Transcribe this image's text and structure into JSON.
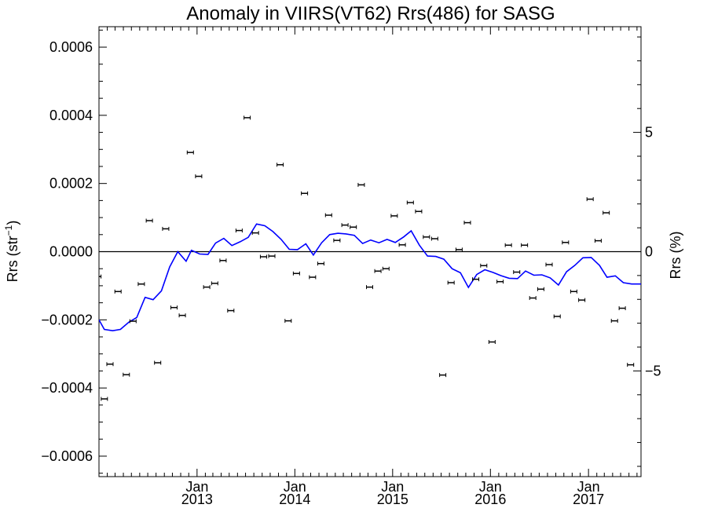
{
  "chart_data": {
    "type": "scatter",
    "title": "Anomaly in VIIRS(VT62) Rrs(486) for SASG",
    "ylabel": {
      "base": "Rrs (str",
      "sup": "−1",
      "tail": ")"
    },
    "y2label": "Rrs (%)",
    "xlabel": "",
    "x_range": [
      "2012-01-01",
      "2017-07-16"
    ],
    "ylim": [
      -0.00066,
      0.00066
    ],
    "y2lim": [
      -9.43,
      9.43
    ],
    "y_ticks": [
      -0.0006,
      -0.0004,
      -0.0002,
      0.0,
      0.0002,
      0.0004,
      0.0006
    ],
    "y_tick_labels": [
      "−0.0006",
      "−0.0004",
      "−0.0002",
      "0.0000",
      "0.0002",
      "0.0004",
      "0.0006"
    ],
    "y2_ticks": [
      -5,
      0,
      5
    ],
    "y2_tick_labels": [
      "−5",
      "0",
      "5"
    ],
    "x_ticks": [
      {
        "date": "2013-01-01",
        "month": "Jan",
        "year": "2013"
      },
      {
        "date": "2014-01-01",
        "month": "Jan",
        "year": "2014"
      },
      {
        "date": "2015-01-01",
        "month": "Jan",
        "year": "2015"
      },
      {
        "date": "2016-01-01",
        "month": "Jan",
        "year": "2016"
      },
      {
        "date": "2017-01-01",
        "month": "Jan",
        "year": "2017"
      }
    ],
    "zero_line": true,
    "series": [
      {
        "kind": "points_with_errorbars",
        "color": "#000000",
        "points": [
          {
            "x": "2011-12-28",
            "y": -7.3e-05
          },
          {
            "x": "2012-01-21",
            "y": -0.000432
          },
          {
            "x": "2012-02-11",
            "y": -0.00033
          },
          {
            "x": "2012-03-12",
            "y": -0.000117
          },
          {
            "x": "2012-04-12",
            "y": -0.000361
          },
          {
            "x": "2012-05-07",
            "y": -0.000204
          },
          {
            "x": "2012-06-07",
            "y": -9.5e-05
          },
          {
            "x": "2012-07-07",
            "y": 9.1e-05
          },
          {
            "x": "2012-08-07",
            "y": -0.000326
          },
          {
            "x": "2012-09-06",
            "y": 6.7e-05
          },
          {
            "x": "2012-10-07",
            "y": -0.000164
          },
          {
            "x": "2012-11-07",
            "y": -0.000187
          },
          {
            "x": "2012-12-07",
            "y": 0.000291
          },
          {
            "x": "2013-01-07",
            "y": 0.000221
          },
          {
            "x": "2013-02-06",
            "y": -0.000104
          },
          {
            "x": "2013-03-08",
            "y": -9.3e-05
          },
          {
            "x": "2013-04-08",
            "y": -2.6e-05
          },
          {
            "x": "2013-05-07",
            "y": -0.000173
          },
          {
            "x": "2013-06-07",
            "y": 6.2e-05
          },
          {
            "x": "2013-07-07",
            "y": 0.000393
          },
          {
            "x": "2013-08-07",
            "y": 5.5e-05
          },
          {
            "x": "2013-09-06",
            "y": -1.5e-05
          },
          {
            "x": "2013-10-07",
            "y": -1.3e-05
          },
          {
            "x": "2013-11-07",
            "y": 0.000255
          },
          {
            "x": "2013-12-07",
            "y": -0.000203
          },
          {
            "x": "2014-01-07",
            "y": -6.4e-05
          },
          {
            "x": "2014-02-06",
            "y": 0.000171
          },
          {
            "x": "2014-03-08",
            "y": -7.5e-05
          },
          {
            "x": "2014-04-08",
            "y": -3.5e-05
          },
          {
            "x": "2014-05-07",
            "y": 0.000107
          },
          {
            "x": "2014-06-07",
            "y": 3.3e-05
          },
          {
            "x": "2014-07-07",
            "y": 7.8e-05
          },
          {
            "x": "2014-08-07",
            "y": 7.2e-05
          },
          {
            "x": "2014-09-06",
            "y": 0.000196
          },
          {
            "x": "2014-10-07",
            "y": -0.000104
          },
          {
            "x": "2014-11-07",
            "y": -5.7e-05
          },
          {
            "x": "2014-12-07",
            "y": -5e-05
          },
          {
            "x": "2015-01-07",
            "y": 0.000105
          },
          {
            "x": "2015-02-06",
            "y": 2e-05
          },
          {
            "x": "2015-03-08",
            "y": 0.000144
          },
          {
            "x": "2015-04-08",
            "y": 0.000118
          },
          {
            "x": "2015-05-07",
            "y": 4.3e-05
          },
          {
            "x": "2015-06-07",
            "y": 3.8e-05
          },
          {
            "x": "2015-07-07",
            "y": -0.000362
          },
          {
            "x": "2015-08-07",
            "y": -9.1e-05
          },
          {
            "x": "2015-09-06",
            "y": 6e-06
          },
          {
            "x": "2015-10-07",
            "y": 8.5e-05
          },
          {
            "x": "2015-11-07",
            "y": -8.1e-05
          },
          {
            "x": "2015-12-07",
            "y": -4.1e-05
          },
          {
            "x": "2016-01-07",
            "y": -0.000265
          },
          {
            "x": "2016-02-06",
            "y": -8.8e-05
          },
          {
            "x": "2016-03-08",
            "y": 1.9e-05
          },
          {
            "x": "2016-04-08",
            "y": -6e-05
          },
          {
            "x": "2016-05-07",
            "y": 1.9e-05
          },
          {
            "x": "2016-06-07",
            "y": -0.000136
          },
          {
            "x": "2016-07-07",
            "y": -0.00011
          },
          {
            "x": "2016-08-07",
            "y": -3.8e-05
          },
          {
            "x": "2016-09-06",
            "y": -0.00019
          },
          {
            "x": "2016-10-07",
            "y": 2.7e-05
          },
          {
            "x": "2016-11-07",
            "y": -0.000117
          },
          {
            "x": "2016-12-07",
            "y": -0.000142
          },
          {
            "x": "2017-01-07",
            "y": 0.000154
          },
          {
            "x": "2017-02-06",
            "y": 3.2e-05
          },
          {
            "x": "2017-03-08",
            "y": 0.000114
          },
          {
            "x": "2017-04-08",
            "y": -0.000203
          },
          {
            "x": "2017-05-07",
            "y": -0.000166
          },
          {
            "x": "2017-06-07",
            "y": -0.000332
          }
        ]
      },
      {
        "kind": "line",
        "color": "#0000ff",
        "points": [
          {
            "x": "2012-01-01",
            "y": -0.0002
          },
          {
            "x": "2012-01-21",
            "y": -0.000228
          },
          {
            "x": "2012-02-21",
            "y": -0.000232
          },
          {
            "x": "2012-03-21",
            "y": -0.000228
          },
          {
            "x": "2012-04-21",
            "y": -0.000207
          },
          {
            "x": "2012-05-21",
            "y": -0.000193
          },
          {
            "x": "2012-06-21",
            "y": -0.000134
          },
          {
            "x": "2012-07-21",
            "y": -0.000141
          },
          {
            "x": "2012-08-21",
            "y": -0.000115
          },
          {
            "x": "2012-09-21",
            "y": -4.5e-05
          },
          {
            "x": "2012-10-21",
            "y": 0.0
          },
          {
            "x": "2012-11-21",
            "y": -2.8e-05
          },
          {
            "x": "2012-12-11",
            "y": 4e-06
          },
          {
            "x": "2013-01-11",
            "y": -7e-06
          },
          {
            "x": "2013-02-11",
            "y": -8e-06
          },
          {
            "x": "2013-03-11",
            "y": 2.5e-05
          },
          {
            "x": "2013-04-11",
            "y": 3.9e-05
          },
          {
            "x": "2013-05-11",
            "y": 1.8e-05
          },
          {
            "x": "2013-06-11",
            "y": 2.9e-05
          },
          {
            "x": "2013-07-11",
            "y": 4.2e-05
          },
          {
            "x": "2013-08-11",
            "y": 8.1e-05
          },
          {
            "x": "2013-09-11",
            "y": 7.6e-05
          },
          {
            "x": "2013-10-11",
            "y": 5.9e-05
          },
          {
            "x": "2013-11-11",
            "y": 3.6e-05
          },
          {
            "x": "2013-12-11",
            "y": 7e-06
          },
          {
            "x": "2014-01-11",
            "y": 6e-06
          },
          {
            "x": "2014-02-11",
            "y": 2.3e-05
          },
          {
            "x": "2014-03-11",
            "y": -1e-05
          },
          {
            "x": "2014-04-11",
            "y": 2.6e-05
          },
          {
            "x": "2014-05-11",
            "y": 5e-05
          },
          {
            "x": "2014-06-11",
            "y": 5.4e-05
          },
          {
            "x": "2014-07-11",
            "y": 5.2e-05
          },
          {
            "x": "2014-08-11",
            "y": 4.8e-05
          },
          {
            "x": "2014-09-11",
            "y": 2.4e-05
          },
          {
            "x": "2014-10-11",
            "y": 3.4e-05
          },
          {
            "x": "2014-11-11",
            "y": 2.6e-05
          },
          {
            "x": "2014-12-11",
            "y": 3.6e-05
          },
          {
            "x": "2015-01-11",
            "y": 2.7e-05
          },
          {
            "x": "2015-02-11",
            "y": 4.3e-05
          },
          {
            "x": "2015-03-11",
            "y": 6.1e-05
          },
          {
            "x": "2015-04-11",
            "y": 1.9e-05
          },
          {
            "x": "2015-05-11",
            "y": -1.3e-05
          },
          {
            "x": "2015-06-11",
            "y": -1.4e-05
          },
          {
            "x": "2015-07-11",
            "y": -2.2e-05
          },
          {
            "x": "2015-08-11",
            "y": -5e-05
          },
          {
            "x": "2015-09-11",
            "y": -6.2e-05
          },
          {
            "x": "2015-10-11",
            "y": -0.000105
          },
          {
            "x": "2015-11-11",
            "y": -6.7e-05
          },
          {
            "x": "2015-12-11",
            "y": -5.3e-05
          },
          {
            "x": "2016-01-11",
            "y": -6.1e-05
          },
          {
            "x": "2016-02-11",
            "y": -7.1e-05
          },
          {
            "x": "2016-03-11",
            "y": -7.8e-05
          },
          {
            "x": "2016-04-11",
            "y": -7.9e-05
          },
          {
            "x": "2016-05-11",
            "y": -5.7e-05
          },
          {
            "x": "2016-06-11",
            "y": -6.9e-05
          },
          {
            "x": "2016-07-11",
            "y": -6.8e-05
          },
          {
            "x": "2016-08-11",
            "y": -7.7e-05
          },
          {
            "x": "2016-09-11",
            "y": -9.8e-05
          },
          {
            "x": "2016-10-11",
            "y": -5.9e-05
          },
          {
            "x": "2016-11-11",
            "y": -4e-05
          },
          {
            "x": "2016-12-11",
            "y": -1.8e-05
          },
          {
            "x": "2017-01-11",
            "y": -1.7e-05
          },
          {
            "x": "2017-02-11",
            "y": -4e-05
          },
          {
            "x": "2017-03-11",
            "y": -7.5e-05
          },
          {
            "x": "2017-04-11",
            "y": -7.1e-05
          },
          {
            "x": "2017-05-11",
            "y": -9.1e-05
          },
          {
            "x": "2017-06-11",
            "y": -9.5e-05
          },
          {
            "x": "2017-07-16",
            "y": -9.5e-05
          }
        ]
      }
    ]
  }
}
